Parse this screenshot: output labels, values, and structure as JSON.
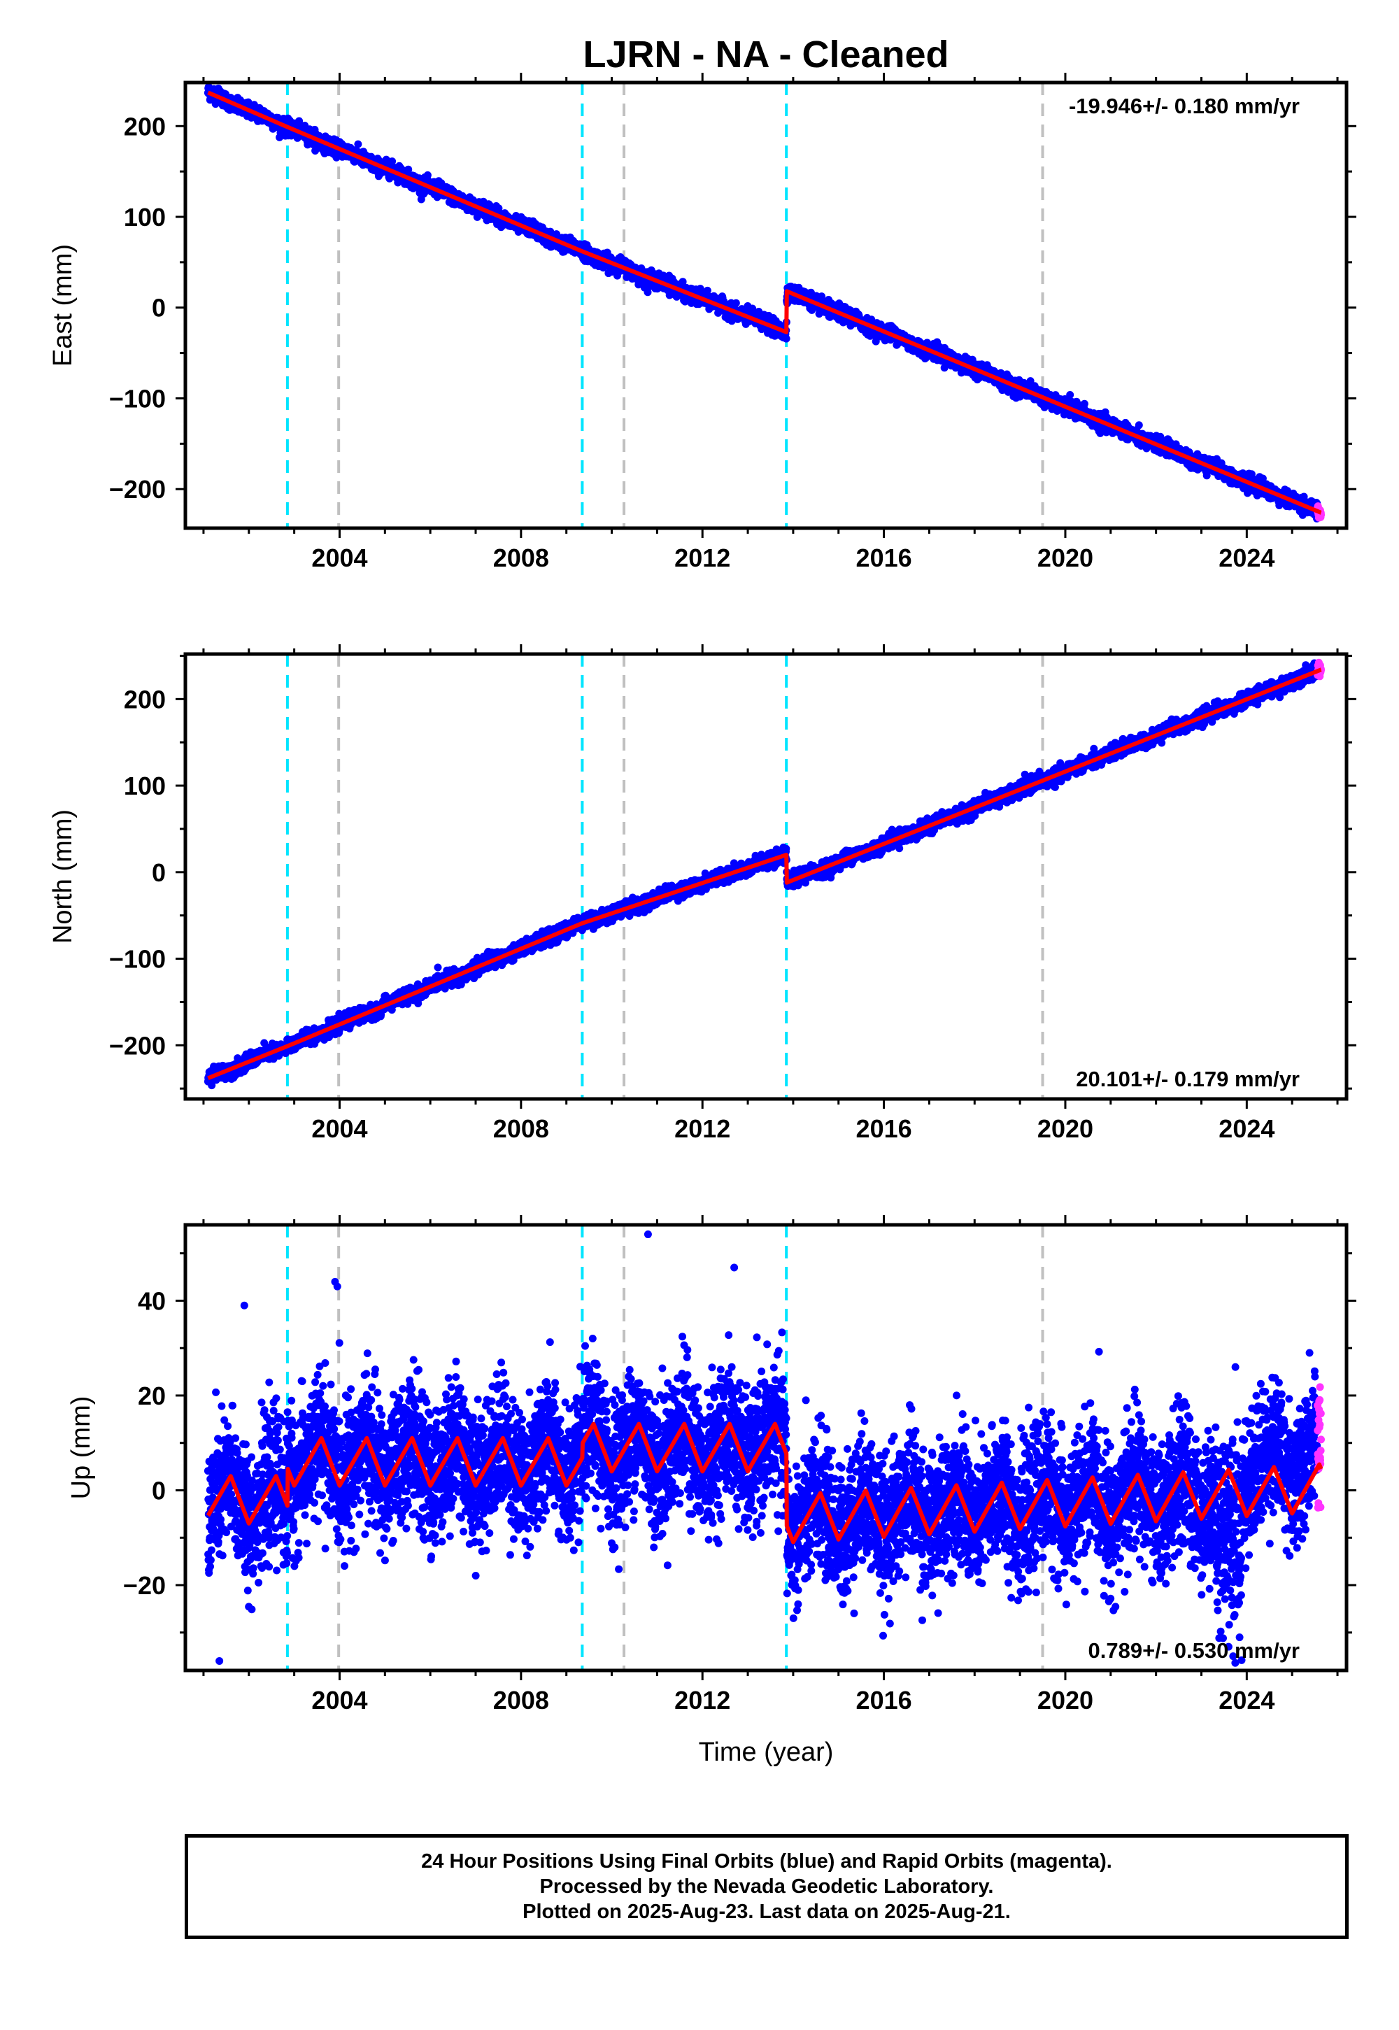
{
  "colors": {
    "final_orbits": "#0000ff",
    "rapid_orbits": "#ff33ff",
    "model": "#ff0000",
    "antenna_change": "#00e5ff",
    "equipment_change": "#c0c0c0",
    "frame": "#000000"
  },
  "chart_data": {
    "title": "LJRN  - NA - Cleaned",
    "xlabel": "Time (year)",
    "x_ticks": [
      "2004",
      "2008",
      "2012",
      "2016",
      "2020",
      "2024"
    ],
    "x_tick_values": [
      2004,
      2008,
      2012,
      2016,
      2020,
      2024
    ],
    "xlim": [
      2000.6,
      2026.2
    ],
    "data_start": 2001.1,
    "data_end": 2025.64,
    "grid": false,
    "vertical_markers": {
      "cyan_dashed": [
        2002.85,
        2009.35,
        2013.85
      ],
      "gray_dashed": [
        2003.98,
        2010.27,
        2019.5
      ]
    },
    "panels": [
      {
        "type": "scatter",
        "component": "East",
        "ylabel": "East (mm)",
        "ylim": [
          -243,
          248
        ],
        "y_ticks": [
          200,
          100,
          0,
          -100,
          -200
        ],
        "y_tick_labels": [
          "200",
          "100",
          "0",
          "−100",
          "−200"
        ],
        "rate_label": "-19.946+/- 0.180 mm/yr",
        "rate_position": "top-right",
        "model_breakpoints": [
          {
            "x": 2001.1,
            "y": 237
          },
          {
            "x": 2002.85,
            "y": 199
          },
          {
            "x": 2009.35,
            "y": 62
          },
          {
            "x": 2013.85,
            "y": -27
          },
          {
            "x": 2013.86,
            "y": 18
          },
          {
            "x": 2025.64,
            "y": -226
          }
        ],
        "noise_mm": 4,
        "seasonal_mm": 1.5
      },
      {
        "type": "scatter",
        "component": "North",
        "ylabel": "North (mm)",
        "ylim": [
          -262,
          252
        ],
        "y_ticks": [
          200,
          100,
          0,
          -100,
          -200
        ],
        "y_tick_labels": [
          "200",
          "100",
          "0",
          "−100",
          "−200"
        ],
        "rate_label": "20.101+/- 0.179 mm/yr",
        "rate_position": "bottom-right",
        "model_breakpoints": [
          {
            "x": 2001.1,
            "y": -238
          },
          {
            "x": 2002.85,
            "y": -201
          },
          {
            "x": 2009.35,
            "y": -59
          },
          {
            "x": 2013.85,
            "y": 20
          },
          {
            "x": 2013.86,
            "y": -12
          },
          {
            "x": 2025.64,
            "y": 234
          }
        ],
        "noise_mm": 4,
        "seasonal_mm": 1.5
      },
      {
        "type": "scatter",
        "component": "Up",
        "ylabel": "Up (mm)",
        "ylim": [
          -38,
          56
        ],
        "y_ticks": [
          40,
          20,
          0,
          -20
        ],
        "y_tick_labels": [
          "40",
          "20",
          "0",
          "−20"
        ],
        "rate_label": "0.789+/- 0.530 mm/yr",
        "rate_position": "bottom-right",
        "model_segments": [
          {
            "start": 2001.1,
            "end": 2002.85,
            "offset": -2
          },
          {
            "start": 2002.85,
            "end": 2009.35,
            "offset": 6
          },
          {
            "start": 2009.35,
            "end": 2013.85,
            "offset": 9
          },
          {
            "start": 2013.86,
            "end": 2025.64,
            "offset": -6,
            "slope": 0.55
          }
        ],
        "seasonal_amplitude_mm": 5,
        "outliers": [
          {
            "x": 2001.35,
            "y": -36
          },
          {
            "x": 2003.9,
            "y": 44
          },
          {
            "x": 2003.95,
            "y": 43
          },
          {
            "x": 2010.8,
            "y": 54
          },
          {
            "x": 2012.7,
            "y": 47
          },
          {
            "x": 2001.9,
            "y": 39
          },
          {
            "x": 2023.6,
            "y": -33
          },
          {
            "x": 2023.7,
            "y": -35
          },
          {
            "x": 2023.75,
            "y": 26
          }
        ],
        "noise_mm": 7
      }
    ]
  },
  "footer": {
    "line1": "24 Hour Positions Using Final Orbits (blue) and Rapid Orbits (magenta).",
    "line2": "Processed by the Nevada Geodetic Laboratory.",
    "line3": "Plotted on 2025-Aug-23. Last data on 2025-Aug-21."
  }
}
